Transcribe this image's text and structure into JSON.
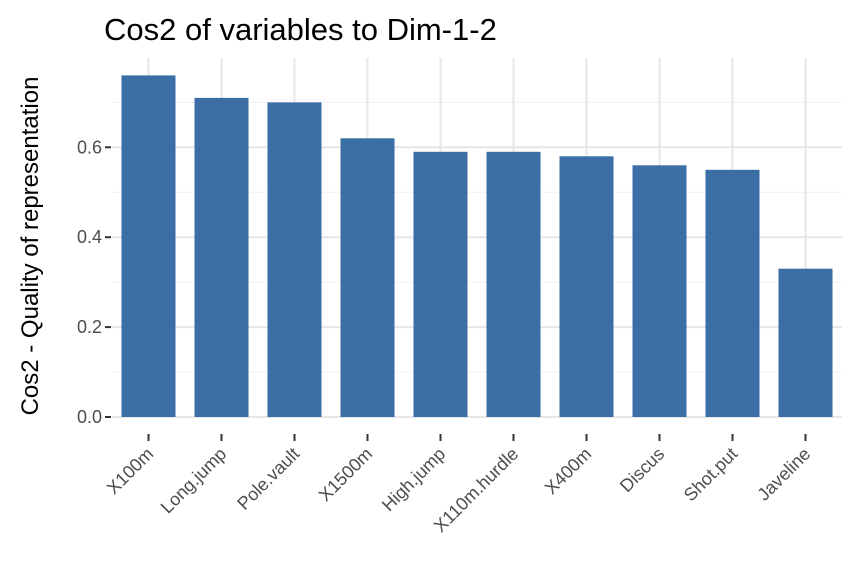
{
  "chart_data": {
    "type": "bar",
    "title": "Cos2 of variables to Dim-1-2",
    "xlabel": "",
    "ylabel": "Cos2 - Quality of representation",
    "categories": [
      "X100m",
      "Long.jump",
      "Pole.vault",
      "X1500m",
      "High.jump",
      "X110m.hurdle",
      "X400m",
      "Discus",
      "Shot.put",
      "Javeline"
    ],
    "values": [
      0.76,
      0.71,
      0.7,
      0.62,
      0.59,
      0.59,
      0.58,
      0.56,
      0.55,
      0.33
    ],
    "ylim": [
      0,
      0.8
    ],
    "yticks": [
      0.0,
      0.2,
      0.4,
      0.6
    ],
    "ytick_labels": [
      "0.0",
      "0.2",
      "0.4",
      "0.6"
    ],
    "grid": true,
    "bar_color": "#3a6ea5",
    "background_color": "#ffffff"
  }
}
